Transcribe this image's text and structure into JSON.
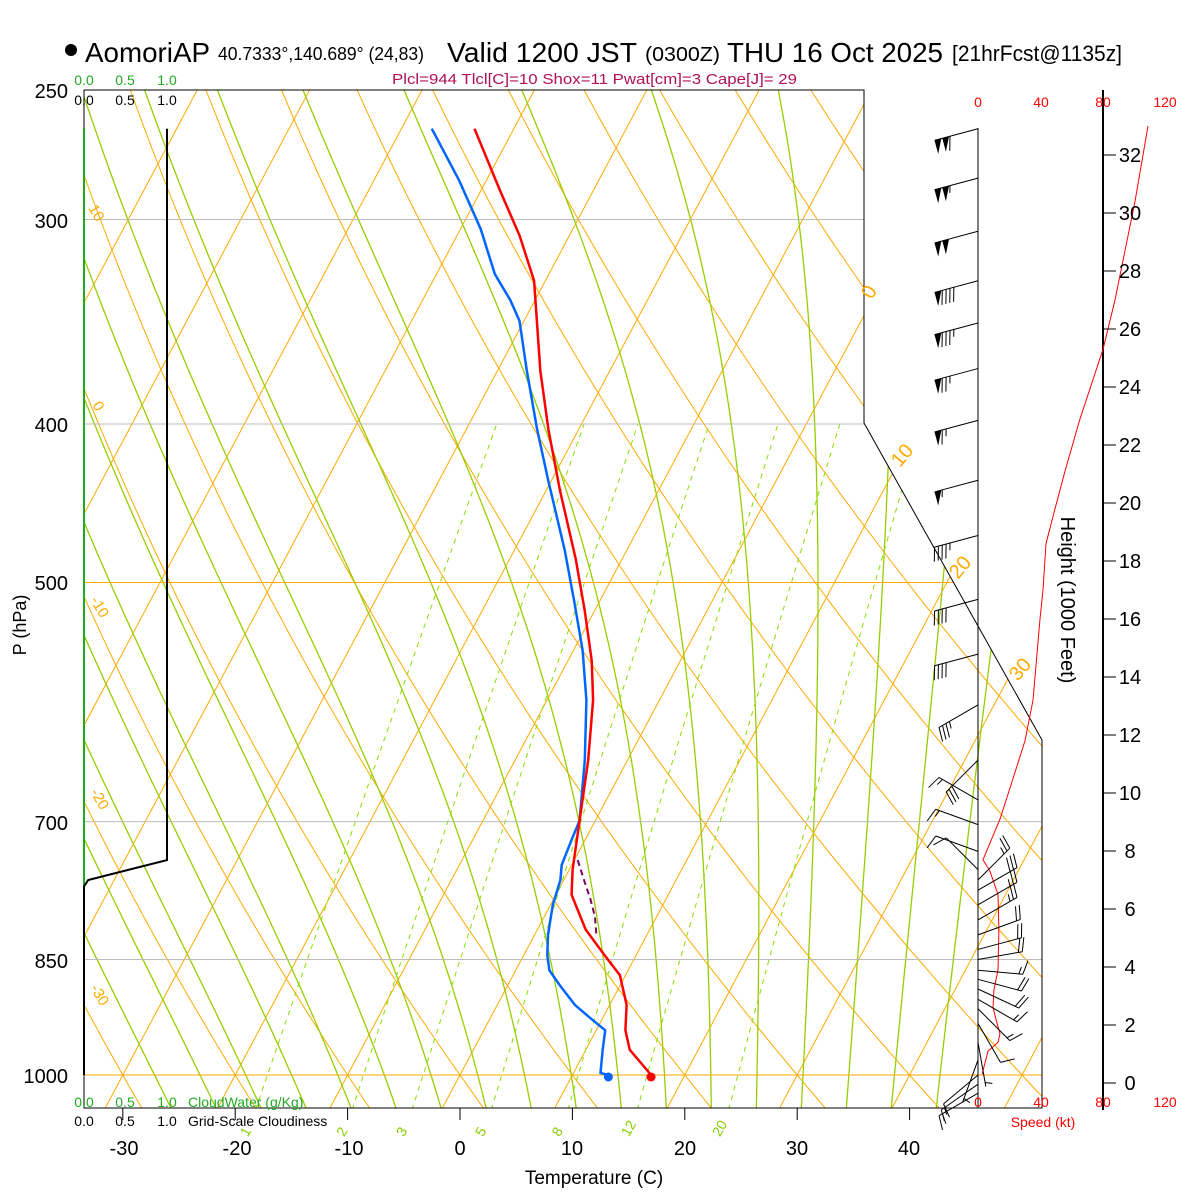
{
  "header": {
    "station": "AomoriAP",
    "coords": "40.7333°,140.689° (24,83)",
    "valid": "Valid 1200 JST",
    "utc": "(0300Z)",
    "date": "THU 16 Oct 2025",
    "forecast": "[21hrFcst@1135z]",
    "stats": "Plcl=944 Tlcl[C]=10 Shox=11 Pwat[cm]=3 Cape[J]= 29"
  },
  "cloud": {
    "water_ticks": [
      "0.0",
      "0.5",
      "1.0"
    ],
    "cloudiness_ticks": [
      "0.0",
      "0.5",
      "1.0"
    ],
    "water_label": "CloudWater (g/Kg)",
    "cloudiness_label": "Grid-Scale Cloudiness"
  },
  "chart_data": {
    "type": "skewt",
    "xlabel": "Temperature (C)",
    "ylabel": "P (hPa)",
    "pressure_ticks": [
      "250",
      "300",
      "400",
      "500",
      "700",
      "850",
      "1000"
    ],
    "temperature_ticks": [
      "-30",
      "-20",
      "-10",
      "0",
      "10",
      "20",
      "30",
      "40"
    ],
    "ylim_hpa": [
      1047,
      250
    ],
    "isotherm_labels": [
      "0",
      "10",
      "20",
      "30"
    ],
    "dry_adiabat_labels": [
      "10",
      "0",
      "-10",
      "-20",
      "-30"
    ],
    "mixing_ratio_labels": [
      "1",
      "2",
      "3",
      "5",
      "8",
      "12",
      "20"
    ],
    "temperature": {
      "name": "Temperature",
      "p": [
        1000,
        965,
        939,
        906,
        869,
        845,
        815,
        776,
        749,
        699,
        642,
        590,
        558,
        520,
        484,
        439,
        403,
        371,
        327,
        307,
        288,
        264
      ],
      "t": [
        17.0,
        13.9,
        12.6,
        11.5,
        9.5,
        7.2,
        4.3,
        1.4,
        0.3,
        -1.4,
        -3.5,
        -5.9,
        -7.9,
        -10.9,
        -14.1,
        -18.8,
        -22.7,
        -26.2,
        -31.0,
        -34.4,
        -38.3,
        -43.5
      ]
    },
    "dewpoint": {
      "name": "Dewpoint",
      "p": [
        1000,
        997,
        965,
        939,
        923,
        906,
        881,
        863,
        845,
        821,
        787,
        760,
        744,
        718,
        699,
        642,
        590,
        550,
        513,
        478,
        433,
        403,
        371,
        346,
        336,
        324,
        304,
        284,
        264
      ],
      "t": [
        13.2,
        12.4,
        11.5,
        10.8,
        8.9,
        6.9,
        4.6,
        3.0,
        2.1,
        1.2,
        0.2,
        -0.3,
        -0.9,
        -1.2,
        -1.4,
        -3.8,
        -6.5,
        -9.2,
        -12.3,
        -15.5,
        -20.3,
        -23.7,
        -27.4,
        -30.4,
        -32.2,
        -34.8,
        -38.2,
        -42.4,
        -47.3
      ]
    },
    "parcel": {
      "name": "Parcel",
      "p": [
        739,
        760,
        781,
        800,
        821
      ],
      "t": [
        0.3,
        1.8,
        3.3,
        4.5,
        5.5
      ]
    },
    "cloudiness": {
      "p": [
        264,
        739,
        760,
        767,
        1000
      ],
      "value": [
        1.0,
        1.0,
        0.05,
        0.0,
        0.0
      ]
    },
    "wind_speed_ticks": [
      "0",
      "40",
      "80",
      "120"
    ],
    "wind_speed_label": "Speed (kt)",
    "height_ticks": [
      "0",
      "2",
      "4",
      "6",
      "8",
      "10",
      "12",
      "14",
      "16",
      "18",
      "20",
      "22",
      "24",
      "26",
      "28",
      "30",
      "32"
    ],
    "height_label": "Height (1000 Feet)",
    "wind_speed_profile": {
      "height_kft": [
        0.3,
        1.1,
        1.4,
        1.7,
        2.2,
        2.6,
        3.2,
        3.9,
        5.3,
        6.5,
        7.3,
        7.7,
        9.1,
        10.4,
        11.8,
        13.2,
        16.0,
        17.0,
        18.6,
        19.8,
        21.1,
        22.9,
        25.3,
        27.0,
        28.7,
        30.4,
        33.0
      ],
      "speed_kt": [
        2.6,
        6.4,
        12.8,
        14.1,
        11.5,
        9.6,
        10.2,
        12.8,
        13.4,
        12.8,
        7.7,
        3.2,
        14.1,
        21.8,
        30.1,
        35.2,
        39.7,
        41.6,
        43.5,
        49.3,
        55.7,
        65.3,
        80,
        87.7,
        94.1,
        100.5,
        108.8
      ]
    },
    "wind_barbs": [
      {
        "p": 264,
        "dir": 255,
        "speed": 110
      },
      {
        "p": 283,
        "dir": 255,
        "speed": 105
      },
      {
        "p": 305,
        "dir": 255,
        "speed": 100
      },
      {
        "p": 327,
        "dir": 255,
        "speed": 90
      },
      {
        "p": 347,
        "dir": 255,
        "speed": 85
      },
      {
        "p": 370,
        "dir": 255,
        "speed": 75
      },
      {
        "p": 398,
        "dir": 255,
        "speed": 65
      },
      {
        "p": 433,
        "dir": 255,
        "speed": 55
      },
      {
        "p": 468,
        "dir": 255,
        "speed": 45
      },
      {
        "p": 512,
        "dir": 255,
        "speed": 40
      },
      {
        "p": 553,
        "dir": 255,
        "speed": 40
      },
      {
        "p": 594,
        "dir": 240,
        "speed": 35
      },
      {
        "p": 642,
        "dir": 225,
        "speed": 30
      },
      {
        "p": 679,
        "dir": 300,
        "speed": 15
      },
      {
        "p": 703,
        "dir": 290,
        "speed": 15
      },
      {
        "p": 730,
        "dir": 290,
        "speed": 10
      },
      {
        "p": 749,
        "dir": 315,
        "speed": 10
      },
      {
        "p": 760,
        "dir": 45,
        "speed": 25
      },
      {
        "p": 771,
        "dir": 60,
        "speed": 30
      },
      {
        "p": 787,
        "dir": 60,
        "speed": 25
      },
      {
        "p": 804,
        "dir": 60,
        "speed": 25
      },
      {
        "p": 821,
        "dir": 70,
        "speed": 20
      },
      {
        "p": 838,
        "dir": 75,
        "speed": 20
      },
      {
        "p": 850,
        "dir": 80,
        "speed": 20
      },
      {
        "p": 863,
        "dir": 95,
        "speed": 15
      },
      {
        "p": 874,
        "dir": 105,
        "speed": 20
      },
      {
        "p": 886,
        "dir": 115,
        "speed": 20
      },
      {
        "p": 899,
        "dir": 120,
        "speed": 15
      },
      {
        "p": 911,
        "dir": 135,
        "speed": 15
      },
      {
        "p": 930,
        "dir": 150,
        "speed": 10
      },
      {
        "p": 955,
        "dir": 170,
        "speed": 5
      },
      {
        "p": 979,
        "dir": 200,
        "speed": 5
      },
      {
        "p": 1000,
        "dir": 230,
        "speed": 10
      },
      {
        "p": 1013,
        "dir": 235,
        "speed": 15
      },
      {
        "p": 1026,
        "dir": 240,
        "speed": 15
      }
    ]
  },
  "colors": {
    "temperature": "#ff0000",
    "dewpoint": "#0066ff",
    "parcel": "#800060",
    "isotherm": "#ffaa00",
    "moist_adiabat": "#99cc00",
    "mixing_ratio": "#88dd00",
    "cloud_water": "#22aa22",
    "stats": "#b0105a",
    "speed": "#ff0000"
  }
}
